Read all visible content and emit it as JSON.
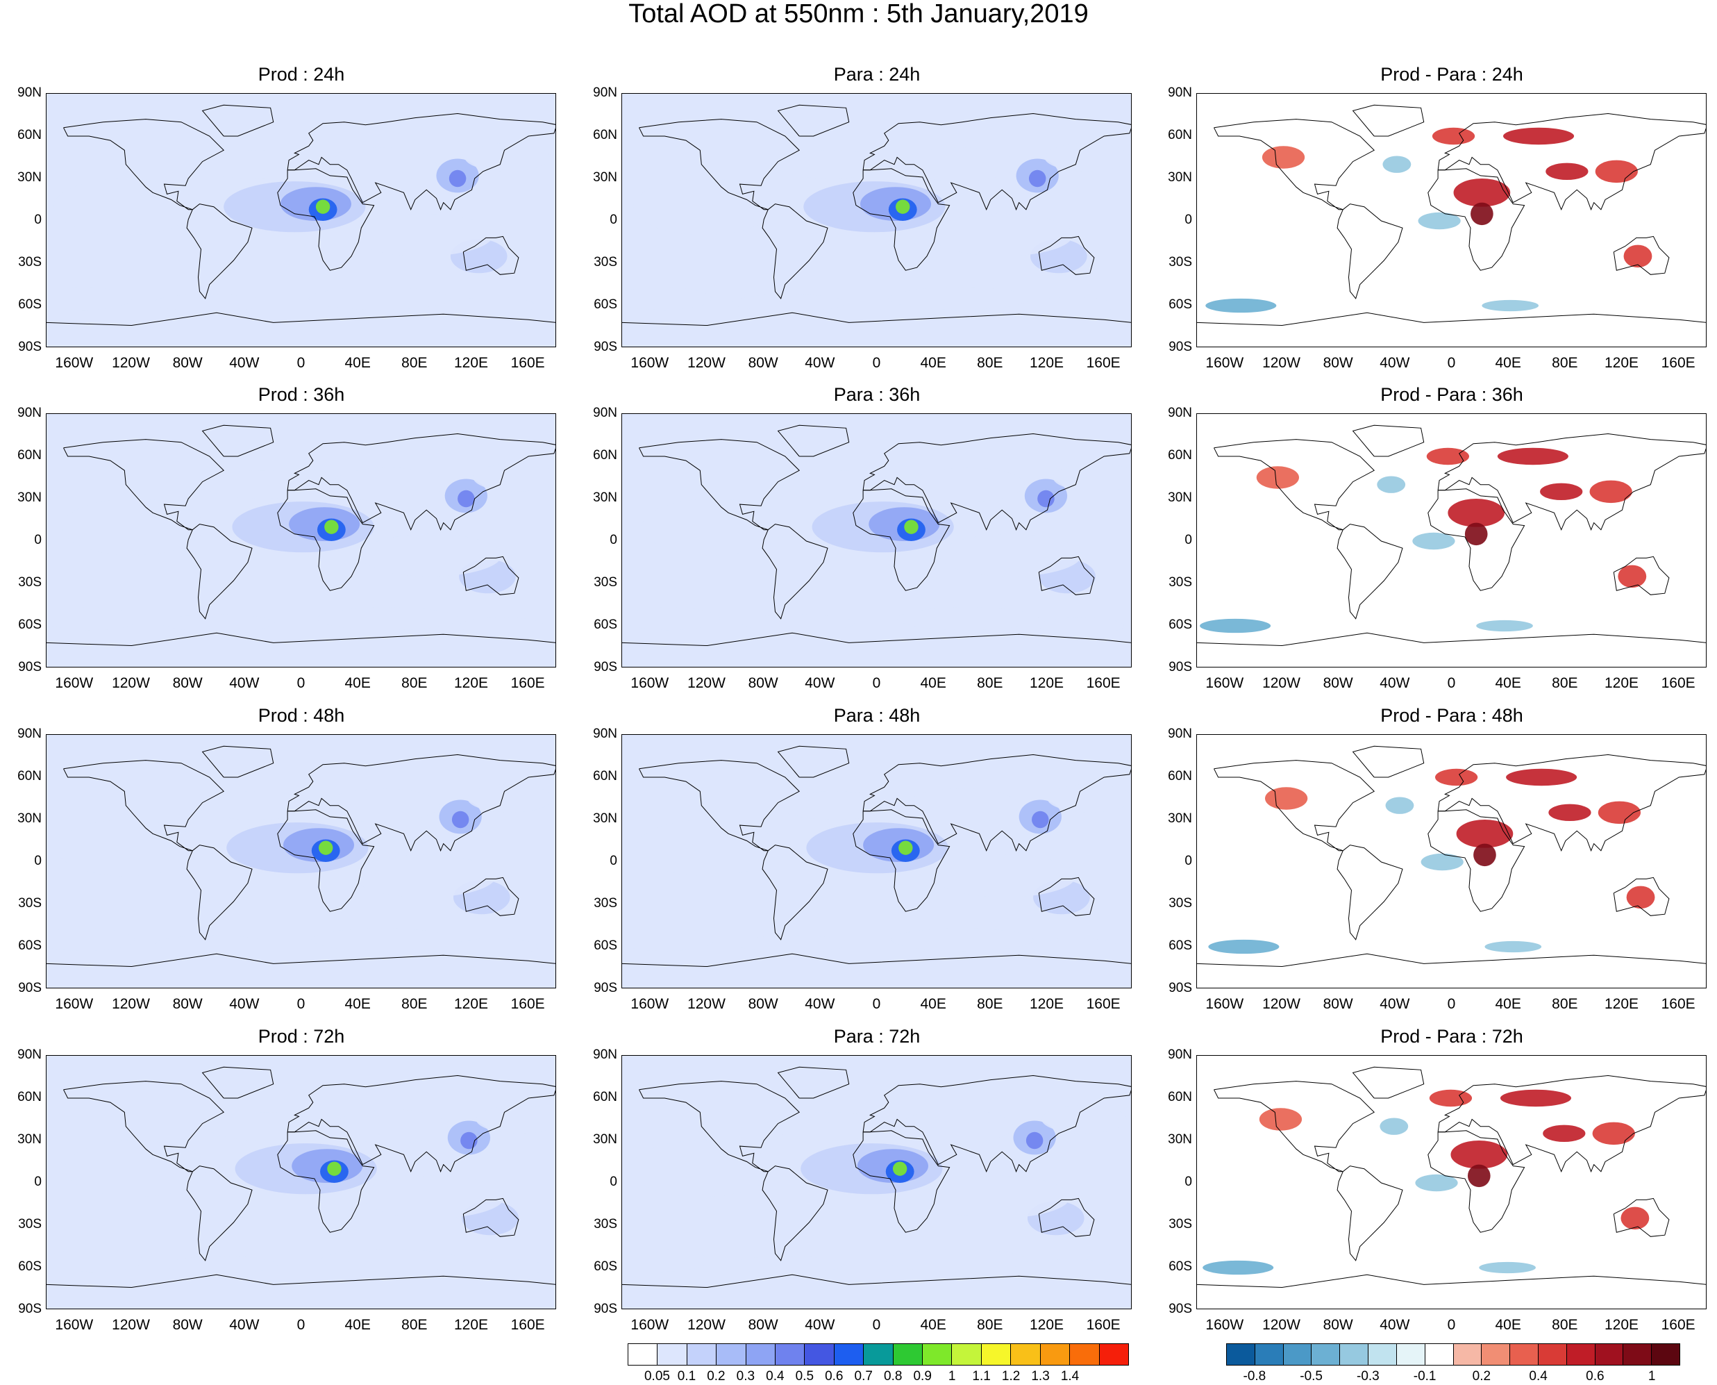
{
  "title": "Total AOD at 550nm : 5th January,2019",
  "lat_labels": [
    "90N",
    "60N",
    "30N",
    "0",
    "30S",
    "60S",
    "90S"
  ],
  "lon_labels": [
    "160W",
    "120W",
    "80W",
    "40W",
    "0",
    "40E",
    "80E",
    "120E",
    "160E"
  ],
  "panels": [
    {
      "title": "Prod : 24h",
      "kind": "aod"
    },
    {
      "title": "Para : 24h",
      "kind": "aod"
    },
    {
      "title": "Prod - Para : 24h",
      "kind": "diff"
    },
    {
      "title": "Prod : 36h",
      "kind": "aod"
    },
    {
      "title": "Para : 36h",
      "kind": "aod"
    },
    {
      "title": "Prod - Para : 36h",
      "kind": "diff"
    },
    {
      "title": "Prod : 48h",
      "kind": "aod"
    },
    {
      "title": "Para : 48h",
      "kind": "aod"
    },
    {
      "title": "Prod - Para : 48h",
      "kind": "diff"
    },
    {
      "title": "Prod : 72h",
      "kind": "aod"
    },
    {
      "title": "Para : 72h",
      "kind": "aod"
    },
    {
      "title": "Prod - Para : 72h",
      "kind": "diff"
    }
  ],
  "aod_colorbar": {
    "labels": [
      "0.05",
      "0.1",
      "0.2",
      "0.3",
      "0.4",
      "0.5",
      "0.6",
      "0.7",
      "0.8",
      "0.9",
      "1",
      "1.1",
      "1.2",
      "1.3",
      "1.4"
    ],
    "colors": [
      "#ffffff",
      "#dde6fd",
      "#c4d2fb",
      "#a8bcf8",
      "#8ea4f4",
      "#6f82ee",
      "#4457e2",
      "#1d5ef0",
      "#089a9a",
      "#2ec933",
      "#7ee82a",
      "#c4f53a",
      "#f6f62a",
      "#f9c018",
      "#f99a10",
      "#f96d0a",
      "#f51f0a"
    ]
  },
  "diff_colorbar": {
    "labels": [
      "-0.8",
      "-0.5",
      "-0.3",
      "-0.1",
      "0.2",
      "0.4",
      "0.6",
      "1"
    ],
    "colors": [
      "#0b5a9c",
      "#2a7db8",
      "#4b99c7",
      "#6cb0d3",
      "#96c9e0",
      "#c1e3ef",
      "#e5f4f8",
      "#ffffff",
      "#f6b8a6",
      "#f18e74",
      "#e8604f",
      "#d93b36",
      "#c01d27",
      "#a0111f",
      "#7e0b17",
      "#5c0610"
    ]
  }
}
